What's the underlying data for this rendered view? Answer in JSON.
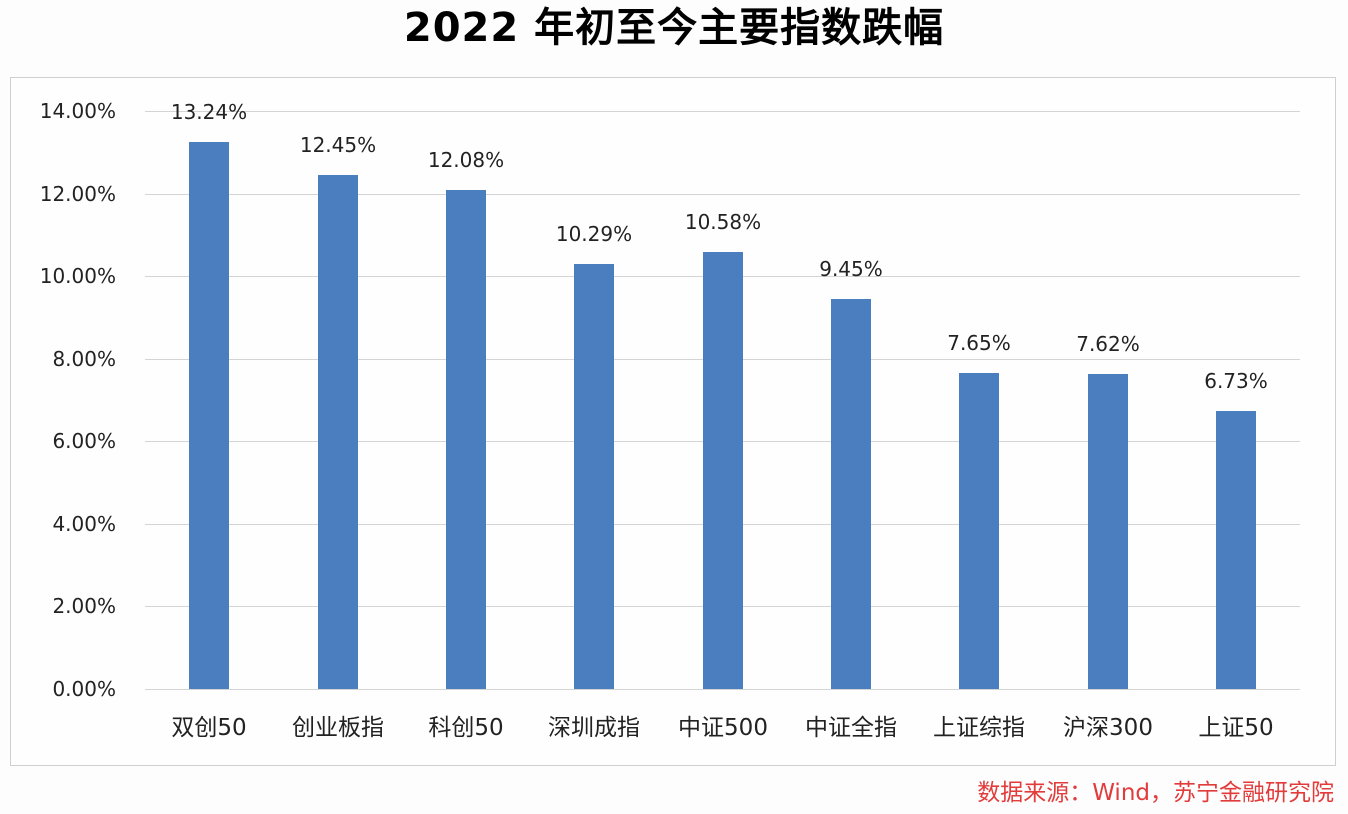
{
  "chart_data": {
    "type": "bar",
    "title": "2022 年初至今主要指数跌幅",
    "categories": [
      "双创50",
      "创业板指",
      "科创50",
      "深圳成指",
      "中证500",
      "中证全指",
      "上证综指",
      "沪深300",
      "上证50"
    ],
    "values": [
      13.24,
      12.45,
      12.08,
      10.29,
      10.58,
      9.45,
      7.65,
      7.62,
      6.73
    ],
    "value_labels": [
      "13.24%",
      "12.45%",
      "12.08%",
      "10.29%",
      "10.58%",
      "9.45%",
      "7.65%",
      "7.62%",
      "6.73%"
    ],
    "xlabel": "",
    "ylabel": "",
    "ylim": [
      0,
      14
    ],
    "yticks": [
      "0.00%",
      "2.00%",
      "4.00%",
      "6.00%",
      "8.00%",
      "10.00%",
      "12.00%",
      "14.00%"
    ],
    "grid": true,
    "legend": null,
    "bar_color": "#4a7ebf",
    "source": "数据来源：Wind，苏宁金融研究院"
  }
}
